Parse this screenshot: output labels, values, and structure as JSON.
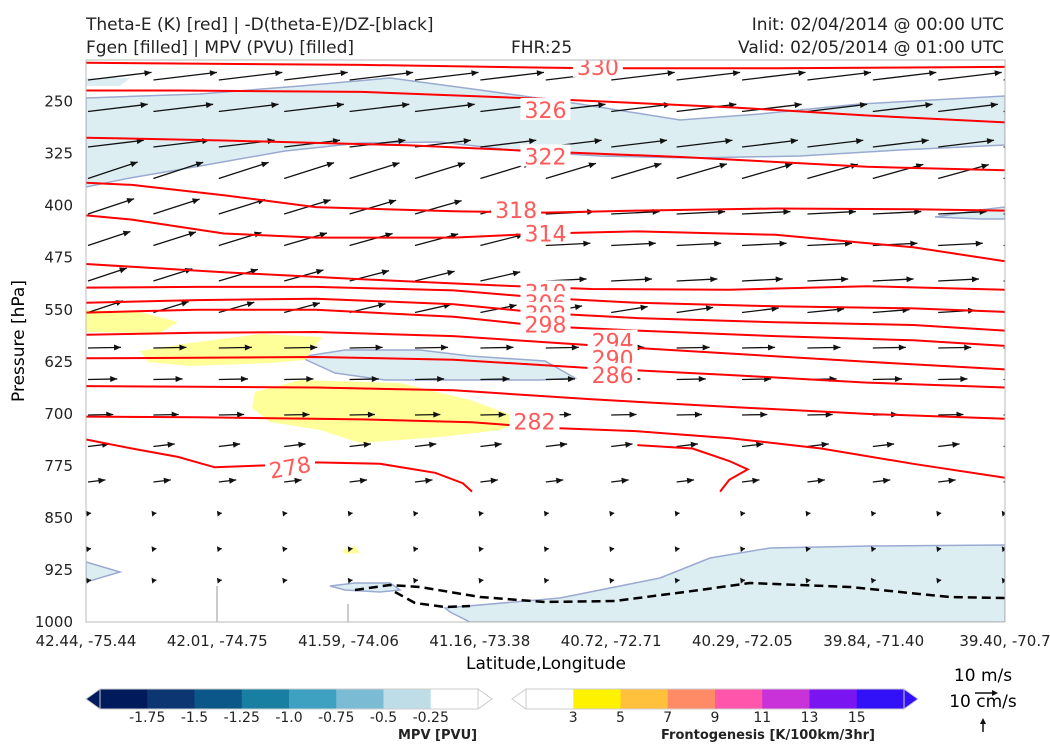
{
  "header": {
    "line1_left": "Theta-E (K) [red] | -D(theta-E)/DZ-[black]",
    "line2_left": "Fgen [filled] | MPV (PVU) [filled]",
    "fhr": "FHR:25",
    "init": "Init: 02/04/2014 @ 00:00 UTC",
    "valid": "Valid: 02/05/2014 @ 01:00 UTC"
  },
  "colors": {
    "theta_e": "#ff0000",
    "theta_e_label": "#ff5a5a",
    "mpv_fill": "#ddeef3",
    "mpv_edge": "#9aaad0",
    "fgen_fill": "#ffff99",
    "vector": "#111111"
  },
  "chart_data": {
    "type": "contour",
    "xlabel": "Latitude,Longitude",
    "ylabel": "Pressure [hPa]",
    "x_ticks": [
      "42.44, -75.44",
      "42.01, -74.75",
      "41.59, -74.06",
      "41.16, -73.38",
      "40.72, -72.71",
      "40.29, -72.05",
      "39.84, -71.40",
      "39.40, -70.7"
    ],
    "y_ticks": [
      "250",
      "325",
      "400",
      "475",
      "550",
      "625",
      "700",
      "775",
      "850",
      "925",
      "1000"
    ],
    "ylim": [
      1000,
      190
    ],
    "theta_e_labels": [
      "330",
      "326",
      "322",
      "318",
      "314",
      "310",
      "306",
      "302",
      "298",
      "294",
      "290",
      "286",
      "282",
      "278"
    ],
    "theta_e_contours": [
      {
        "value": 330,
        "points": [
          [
            0,
            194
          ],
          [
            0.3,
            197
          ],
          [
            0.55,
            202
          ],
          [
            0.75,
            202
          ],
          [
            1,
            200
          ]
        ]
      },
      {
        "value": 326,
        "points": [
          [
            0,
            234
          ],
          [
            0.1,
            234
          ],
          [
            0.3,
            236
          ],
          [
            0.5,
            246
          ],
          [
            0.7,
            258
          ],
          [
            0.85,
            270
          ],
          [
            1,
            280
          ]
        ]
      },
      {
        "value": 322,
        "points": [
          [
            0,
            302
          ],
          [
            0.15,
            306
          ],
          [
            0.35,
            313
          ],
          [
            0.5,
            322
          ],
          [
            0.65,
            330
          ],
          [
            0.85,
            344
          ],
          [
            1,
            349
          ]
        ]
      },
      {
        "value": 318,
        "points": [
          [
            0,
            367
          ],
          [
            0.05,
            370
          ],
          [
            0.15,
            385
          ],
          [
            0.25,
            402
          ],
          [
            0.4,
            408
          ],
          [
            0.5,
            410
          ],
          [
            0.6,
            407
          ],
          [
            0.75,
            404
          ],
          [
            0.9,
            405
          ],
          [
            1,
            407
          ]
        ]
      },
      {
        "value": 314,
        "points": [
          [
            0,
            414
          ],
          [
            0.05,
            420
          ],
          [
            0.15,
            440
          ],
          [
            0.25,
            446
          ],
          [
            0.4,
            446
          ],
          [
            0.5,
            440
          ],
          [
            0.6,
            437
          ],
          [
            0.75,
            442
          ],
          [
            0.9,
            460
          ],
          [
            1,
            480
          ]
        ]
      },
      {
        "value": 310,
        "points": [
          [
            0,
            484
          ],
          [
            0.05,
            488
          ],
          [
            0.15,
            496
          ],
          [
            0.3,
            506
          ],
          [
            0.45,
            515
          ],
          [
            0.55,
            520
          ],
          [
            0.7,
            521
          ],
          [
            0.85,
            516
          ],
          [
            1,
            521
          ]
        ]
      },
      {
        "value": 306,
        "points": [
          [
            0,
            518
          ],
          [
            0.12,
            517
          ],
          [
            0.25,
            517
          ],
          [
            0.4,
            522
          ],
          [
            0.5,
            533
          ],
          [
            0.6,
            540
          ],
          [
            0.75,
            545
          ],
          [
            0.9,
            548
          ],
          [
            1,
            553
          ]
        ]
      },
      {
        "value": 302,
        "points": [
          [
            0,
            540
          ],
          [
            0.12,
            536
          ],
          [
            0.25,
            534
          ],
          [
            0.4,
            542
          ],
          [
            0.5,
            555
          ],
          [
            0.6,
            562
          ],
          [
            0.75,
            568
          ],
          [
            0.9,
            572
          ],
          [
            1,
            580
          ]
        ]
      },
      {
        "value": 298,
        "points": [
          [
            0,
            554
          ],
          [
            0.12,
            550
          ],
          [
            0.25,
            550
          ],
          [
            0.4,
            560
          ],
          [
            0.5,
            574
          ],
          [
            0.6,
            580
          ],
          [
            0.75,
            588
          ],
          [
            0.9,
            594
          ],
          [
            1,
            602
          ]
        ]
      },
      {
        "value": 294,
        "points": [
          [
            0,
            586
          ],
          [
            0.12,
            583
          ],
          [
            0.25,
            582
          ],
          [
            0.4,
            588
          ],
          [
            0.55,
            601
          ],
          [
            0.7,
            613
          ],
          [
            0.85,
            625
          ],
          [
            1,
            636
          ]
        ]
      },
      {
        "value": 290,
        "points": [
          [
            0,
            620
          ],
          [
            0.12,
            619
          ],
          [
            0.25,
            618
          ],
          [
            0.4,
            622
          ],
          [
            0.55,
            634
          ],
          [
            0.7,
            644
          ],
          [
            0.85,
            655
          ],
          [
            1,
            662
          ]
        ]
      },
      {
        "value": 286,
        "points": [
          [
            0,
            660
          ],
          [
            0.12,
            661
          ],
          [
            0.25,
            662
          ],
          [
            0.4,
            666
          ],
          [
            0.55,
            679
          ],
          [
            0.7,
            690
          ],
          [
            0.85,
            700
          ],
          [
            1,
            707
          ]
        ]
      },
      {
        "value": 282,
        "points": [
          [
            0,
            704
          ],
          [
            0.12,
            705
          ],
          [
            0.3,
            708
          ],
          [
            0.42,
            712
          ],
          [
            0.5,
            720
          ],
          [
            0.6,
            725
          ],
          [
            0.65,
            730
          ],
          [
            0.7,
            735
          ],
          [
            0.8,
            750
          ],
          [
            0.9,
            772
          ],
          [
            1,
            792
          ]
        ]
      },
      {
        "value": 278,
        "points": [
          [
            0,
            737
          ],
          [
            0.05,
            750
          ],
          [
            0.1,
            762
          ],
          [
            0.14,
            777
          ],
          [
            0.2,
            774
          ],
          [
            0.25,
            770
          ],
          [
            0.32,
            772
          ],
          [
            0.38,
            785
          ],
          [
            0.41,
            800
          ],
          [
            0.42,
            812
          ]
        ]
      },
      {
        "value": 278,
        "points": [
          [
            0.69,
            812
          ],
          [
            0.7,
            795
          ],
          [
            0.72,
            780
          ],
          [
            0.7,
            768
          ],
          [
            0.66,
            750
          ],
          [
            0.6,
            745
          ]
        ]
      }
    ],
    "mpv_colorbar": {
      "label": "MPV [PVU]",
      "ticks": [
        "-1.75",
        "-1.5",
        "-1.25",
        "-1.0",
        "-0.75",
        "-0.5",
        "-0.25"
      ],
      "colors": [
        "#001a5c",
        "#0c3672",
        "#0c5789",
        "#187ea2",
        "#3ea1c2",
        "#7bbbd4",
        "#bfdde6",
        "#ffffff"
      ]
    },
    "fgen_colorbar": {
      "label": "Frontogenesis [K/100km/3hr]",
      "ticks": [
        "3",
        "5",
        "7",
        "9",
        "11",
        "13",
        "15"
      ],
      "colors": [
        "#ffffff",
        "#fff200",
        "#ffc13c",
        "#ff8a66",
        "#ff55aa",
        "#c832d8",
        "#7a14f0",
        "#3210f8"
      ]
    },
    "vector_key": {
      "horizontal": "10 m/s",
      "vertical": "10 cm/s"
    }
  }
}
